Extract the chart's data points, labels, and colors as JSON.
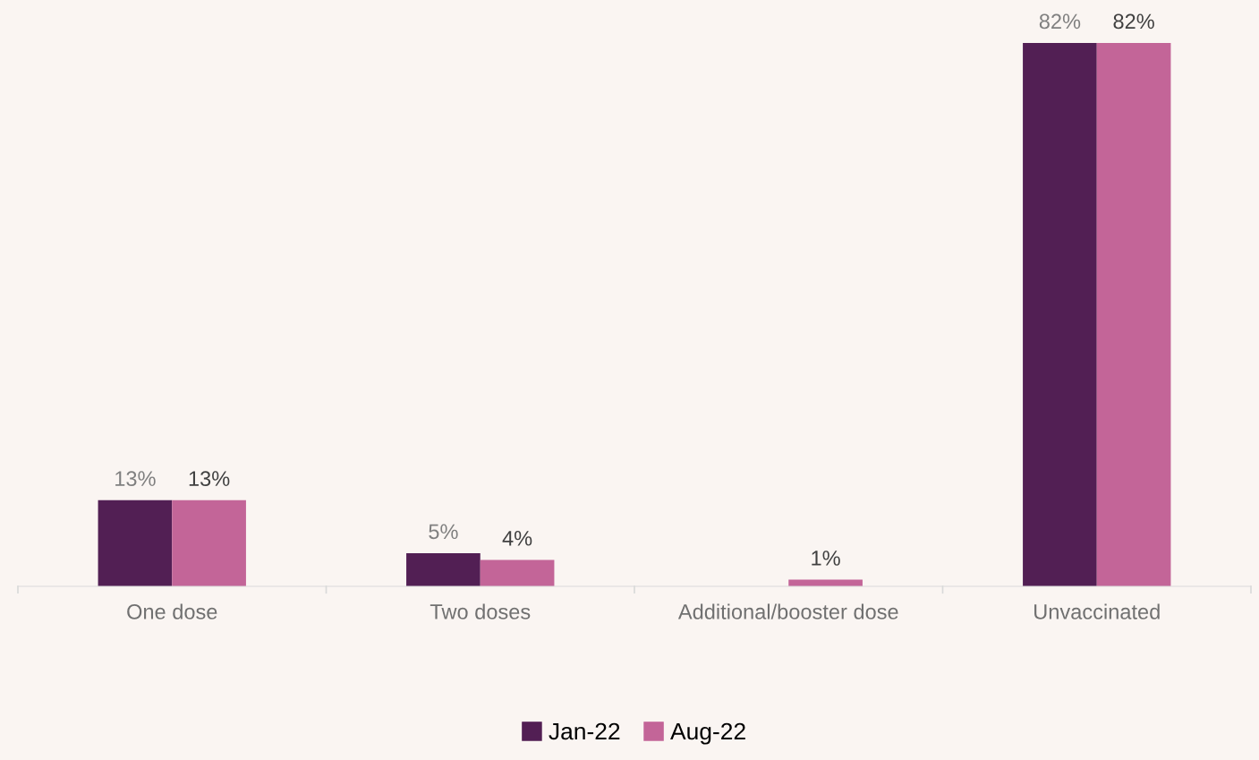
{
  "chart_data": {
    "type": "bar",
    "categories": [
      "One dose",
      "Two doses",
      "Additional/booster dose",
      "Unvaccinated"
    ],
    "series": [
      {
        "name": "Jan-22",
        "color": "#521f54",
        "values": [
          13,
          5,
          null,
          82
        ],
        "value_labels": [
          "13%",
          "5%",
          null,
          "82%"
        ]
      },
      {
        "name": "Aug-22",
        "color": "#c36598",
        "values": [
          13,
          4,
          1,
          82
        ],
        "value_labels": [
          "13%",
          "4%",
          "1%",
          "82%"
        ]
      }
    ],
    "grid": false,
    "legend": "bottom",
    "tick_labels": "x"
  }
}
